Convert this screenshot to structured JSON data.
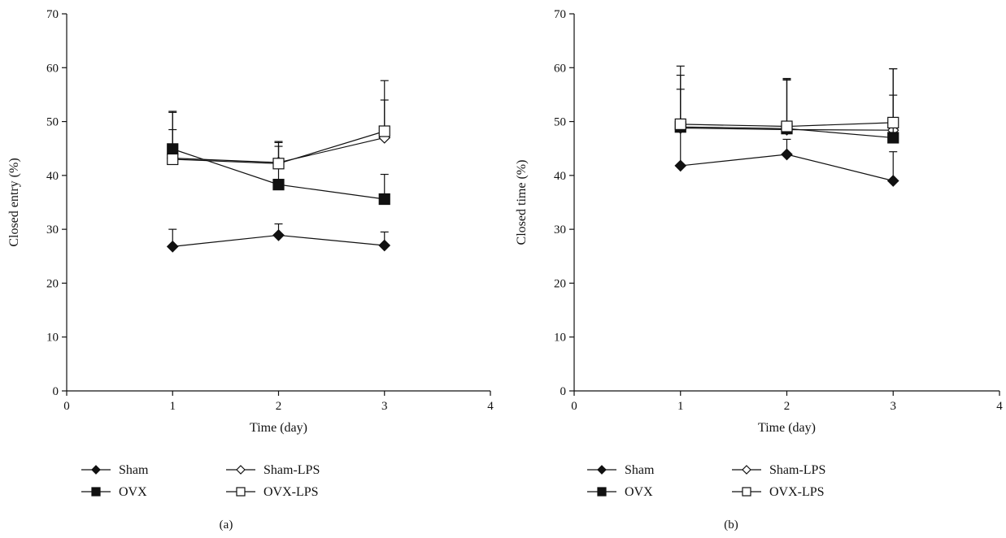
{
  "chart_data": [
    {
      "type": "line",
      "panel_label": "(a)",
      "xlabel": "Time (day)",
      "ylabel": "Closed entry (%)",
      "xlim": [
        0,
        4
      ],
      "ylim": [
        0,
        70
      ],
      "x_ticks": [
        0,
        1,
        2,
        3,
        4
      ],
      "y_ticks": [
        0,
        10,
        20,
        30,
        40,
        50,
        60,
        70
      ],
      "grid": false,
      "legend_position": "bottom",
      "x": [
        1,
        2,
        3
      ],
      "series": [
        {
          "name": "Sham",
          "marker": "diamond-filled",
          "values": [
            26.8,
            28.9,
            27.0
          ],
          "error": [
            3.2,
            2.1,
            2.5
          ]
        },
        {
          "name": "Sham-LPS",
          "marker": "diamond-open",
          "values": [
            43.2,
            42.4,
            47.0
          ],
          "error": [
            8.5,
            3.9,
            7.0
          ]
        },
        {
          "name": "OVX",
          "marker": "square-filled",
          "values": [
            44.9,
            38.3,
            35.6
          ],
          "error": [
            7.0,
            7.8,
            4.6
          ]
        },
        {
          "name": "OVX-LPS",
          "marker": "square-open",
          "values": [
            43.0,
            42.2,
            48.2
          ],
          "error": [
            5.5,
            3.2,
            9.4
          ]
        }
      ]
    },
    {
      "type": "line",
      "panel_label": "(b)",
      "xlabel": "Time (day)",
      "ylabel": "Closed time (%)",
      "xlim": [
        0,
        4
      ],
      "ylim": [
        0,
        70
      ],
      "x_ticks": [
        0,
        1,
        2,
        3,
        4
      ],
      "y_ticks": [
        0,
        10,
        20,
        30,
        40,
        50,
        60,
        70
      ],
      "grid": false,
      "legend_position": "bottom",
      "x": [
        1,
        2,
        3
      ],
      "series": [
        {
          "name": "Sham",
          "marker": "diamond-filled",
          "values": [
            41.8,
            43.9,
            39.0
          ],
          "error": [
            7.0,
            2.8,
            5.4
          ]
        },
        {
          "name": "Sham-LPS",
          "marker": "diamond-open",
          "values": [
            48.8,
            48.5,
            48.4
          ],
          "error": [
            9.8,
            9.3,
            11.4
          ]
        },
        {
          "name": "OVX",
          "marker": "square-filled",
          "values": [
            49.0,
            48.7,
            47.0
          ],
          "error": [
            7.0,
            9.0,
            7.9
          ]
        },
        {
          "name": "OVX-LPS",
          "marker": "square-open",
          "values": [
            49.5,
            49.1,
            49.8
          ],
          "error": [
            10.8,
            8.9,
            10.0
          ]
        }
      ]
    }
  ]
}
